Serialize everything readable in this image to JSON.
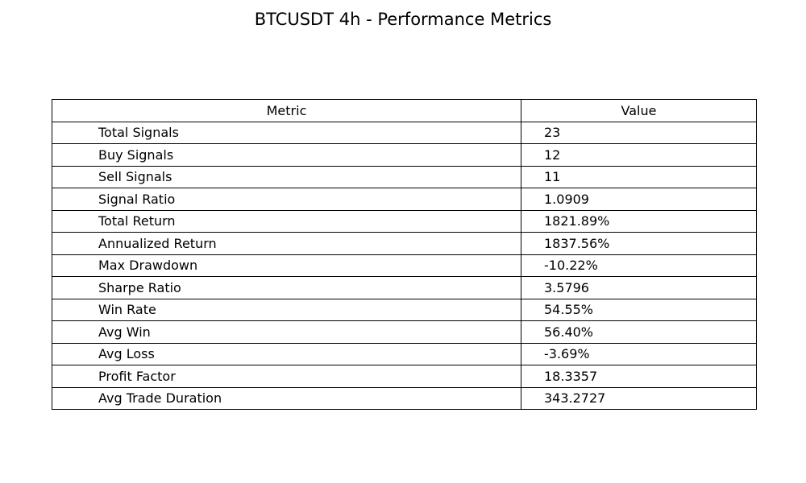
{
  "title": "BTCUSDT 4h - Performance Metrics",
  "chart_data": {
    "type": "table",
    "title": "BTCUSDT 4h - Performance Metrics",
    "columns": [
      "Metric",
      "Value"
    ],
    "rows": [
      [
        "Total Signals",
        "23"
      ],
      [
        "Buy Signals",
        "12"
      ],
      [
        "Sell Signals",
        "11"
      ],
      [
        "Signal Ratio",
        "1.0909"
      ],
      [
        "Total Return",
        "1821.89%"
      ],
      [
        "Annualized Return",
        "1837.56%"
      ],
      [
        "Max Drawdown",
        "-10.22%"
      ],
      [
        "Sharpe Ratio",
        "3.5796"
      ],
      [
        "Win Rate",
        "54.55%"
      ],
      [
        "Avg Win",
        "56.40%"
      ],
      [
        "Avg Loss",
        "-3.69%"
      ],
      [
        "Profit Factor",
        "18.3357"
      ],
      [
        "Avg Trade Duration",
        "343.2727"
      ]
    ]
  }
}
